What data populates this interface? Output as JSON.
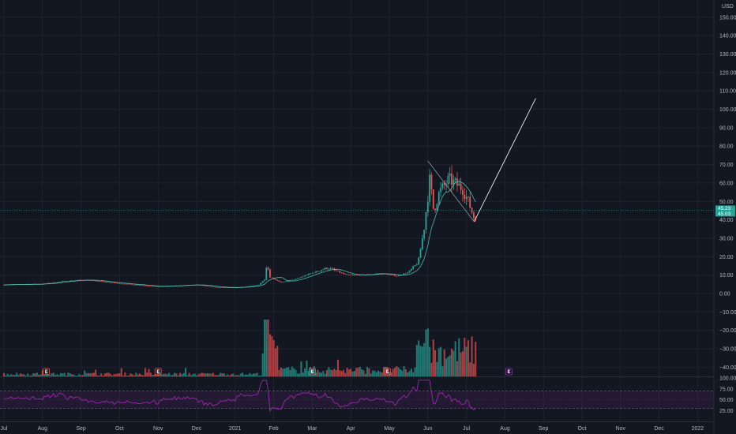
{
  "chart_data": {
    "type": "candlestick",
    "currency": "USD",
    "price_axis": {
      "ylim": [
        -45,
        160
      ],
      "ticks": [
        150,
        140,
        130,
        120,
        110,
        100,
        90,
        80,
        70,
        60,
        50,
        40,
        30,
        20,
        10,
        0,
        -10,
        -20,
        -30,
        -40
      ],
      "tick_labels": [
        "150.00",
        "140.00",
        "130.00",
        "120.00",
        "110.00",
        "100.00",
        "90.00",
        "80.00",
        "70.00",
        "60.00",
        "50.00",
        "40.00",
        "30.00",
        "20.00",
        "10.00",
        "0.00",
        "−10.00",
        "−20.00",
        "−30.00",
        "−40.00"
      ]
    },
    "rsi_axis": {
      "ylim": [
        0,
        100
      ],
      "ticks": [
        100,
        75,
        50,
        25
      ],
      "tick_labels": [
        "100.00",
        "75.00",
        "50.00",
        "25.00"
      ],
      "band": [
        30,
        70
      ]
    },
    "time_axis": {
      "labels": [
        "Jul",
        "Aug",
        "Sep",
        "Oct",
        "Nov",
        "Dec",
        "2021",
        "Feb",
        "Mar",
        "Apr",
        "May",
        "Jun",
        "Jul",
        "Aug",
        "Sep",
        "Oct",
        "Nov",
        "Dec",
        "2022"
      ],
      "months_offset": [
        0,
        1,
        2,
        3,
        4,
        5,
        6,
        7,
        8,
        9,
        10,
        11,
        12,
        13,
        14,
        15,
        16,
        17,
        18
      ]
    },
    "price_path": [
      [
        0,
        4.8
      ],
      [
        1,
        5.2
      ],
      [
        1.6,
        6.8
      ],
      [
        2.1,
        7.5
      ],
      [
        3,
        5.5
      ],
      [
        4,
        3.8
      ],
      [
        5,
        4.8
      ],
      [
        5.5,
        3.4
      ],
      [
        6,
        3.2
      ],
      [
        6.6,
        4.5
      ],
      [
        6.78,
        8
      ],
      [
        6.82,
        17
      ],
      [
        6.9,
        9
      ],
      [
        7.2,
        6
      ],
      [
        7.6,
        8
      ],
      [
        7.9,
        10.5
      ],
      [
        8.4,
        14
      ],
      [
        8.9,
        10
      ],
      [
        9.4,
        10.2
      ],
      [
        9.8,
        11
      ],
      [
        10.2,
        9.5
      ],
      [
        10.5,
        11.5
      ],
      [
        10.75,
        17
      ],
      [
        10.9,
        35
      ],
      [
        11.05,
        62
      ],
      [
        11.15,
        45
      ],
      [
        11.3,
        55
      ],
      [
        11.55,
        62
      ],
      [
        11.9,
        57
      ],
      [
        12.05,
        50
      ],
      [
        12.2,
        41
      ],
      [
        12.25,
        43
      ]
    ],
    "current_price": 45.23,
    "price_labels": [
      "45.23",
      "45.03"
    ],
    "projection": {
      "start": [
        12.2,
        39
      ],
      "end": [
        13.8,
        106
      ]
    },
    "earnings_markers": {
      "label": "E",
      "at_months": [
        1.1,
        4.0,
        8.0,
        9.95
      ],
      "upcoming_at_month": 13.1
    },
    "colors": {
      "up": "#26a69a",
      "down": "#ef5350",
      "rsi": "#9c27b0",
      "projection": "#ffffff",
      "earnings": "#ef5350",
      "earnings_upcoming": "#9c27b0"
    }
  }
}
